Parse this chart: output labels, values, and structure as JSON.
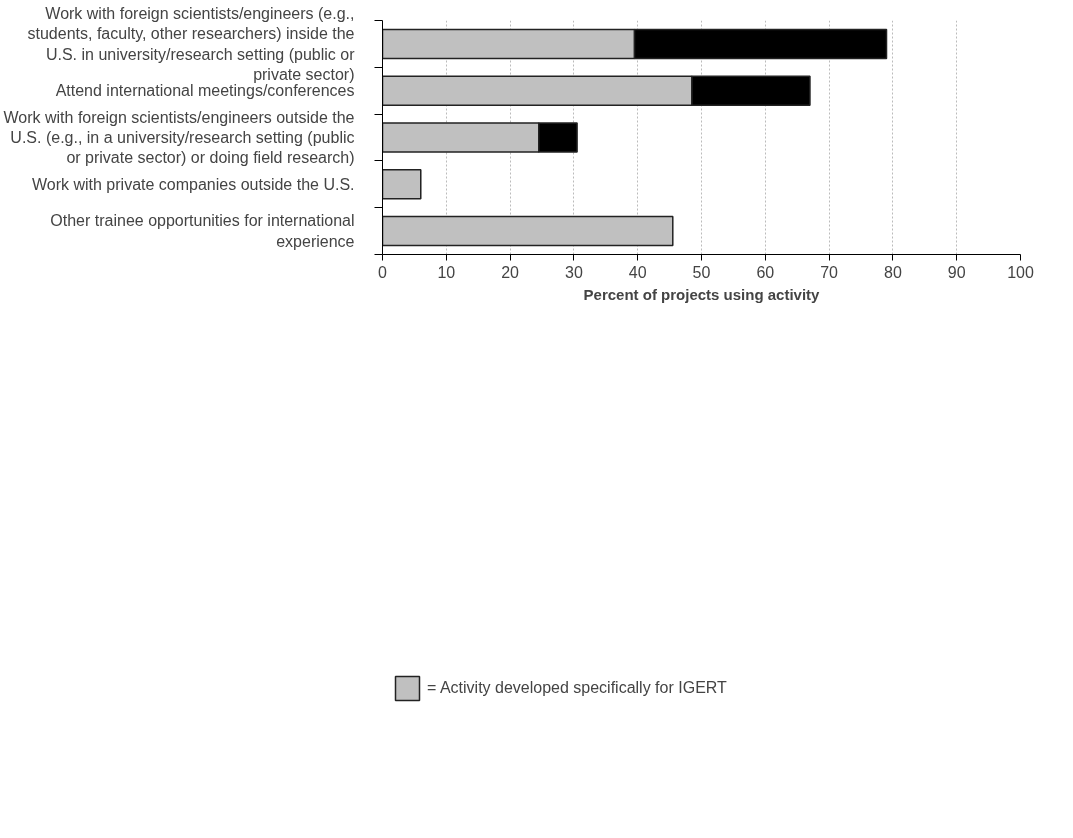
{
  "chart_data": {
    "type": "bar",
    "orientation": "horizontal",
    "stacked": true,
    "xlabel": "Percent of projects using activity",
    "categories": [
      "Work with foreign scientists/engineers (e.g., students, faculty, other researchers) inside the U.S. in university/research setting (public or private sector)",
      "Attend international meetings/conferences",
      "Work with foreign scientists/engineers outside the U.S. (e.g., in a university/research setting (public or private sector) or doing field research)",
      "Work with private companies outside the U.S.",
      "Other trainee opportunities for international experience"
    ],
    "series": [
      {
        "name": "= Activity developed specifically for IGERT",
        "color": "#c0c0c0",
        "values": [
          39.5,
          48.5,
          24.5,
          6,
          45.5
        ]
      },
      {
        "color": "#000000",
        "values": [
          39.5,
          18.5,
          6,
          null,
          null
        ]
      }
    ],
    "xlim": [
      0,
      100
    ],
    "xticks": [
      0,
      10,
      20,
      30,
      40,
      50,
      60,
      70,
      80,
      90,
      100
    ],
    "grid": "x",
    "legend": "bottom left"
  }
}
